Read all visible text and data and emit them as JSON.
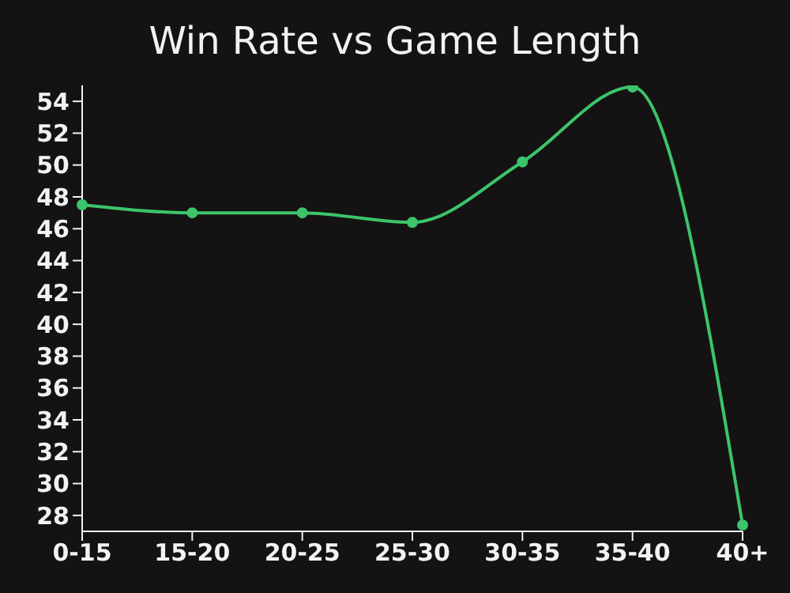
{
  "chart_data": {
    "type": "line",
    "title": "Win Rate vs Game Length",
    "categories": [
      "0-15",
      "15-20",
      "20-25",
      "25-30",
      "30-35",
      "35-40",
      "40+"
    ],
    "series": [
      {
        "color": "#3cc46a",
        "values": [
          47.5,
          47.0,
          47.0,
          46.4,
          50.2,
          54.9,
          27.4
        ]
      }
    ],
    "ylim": [
      27,
      55
    ],
    "yticks": [
      28,
      30,
      32,
      34,
      36,
      38,
      40,
      42,
      44,
      46,
      48,
      50,
      52,
      54
    ],
    "grid": false,
    "legend": false,
    "marker": "circle",
    "line_style": "solid"
  }
}
